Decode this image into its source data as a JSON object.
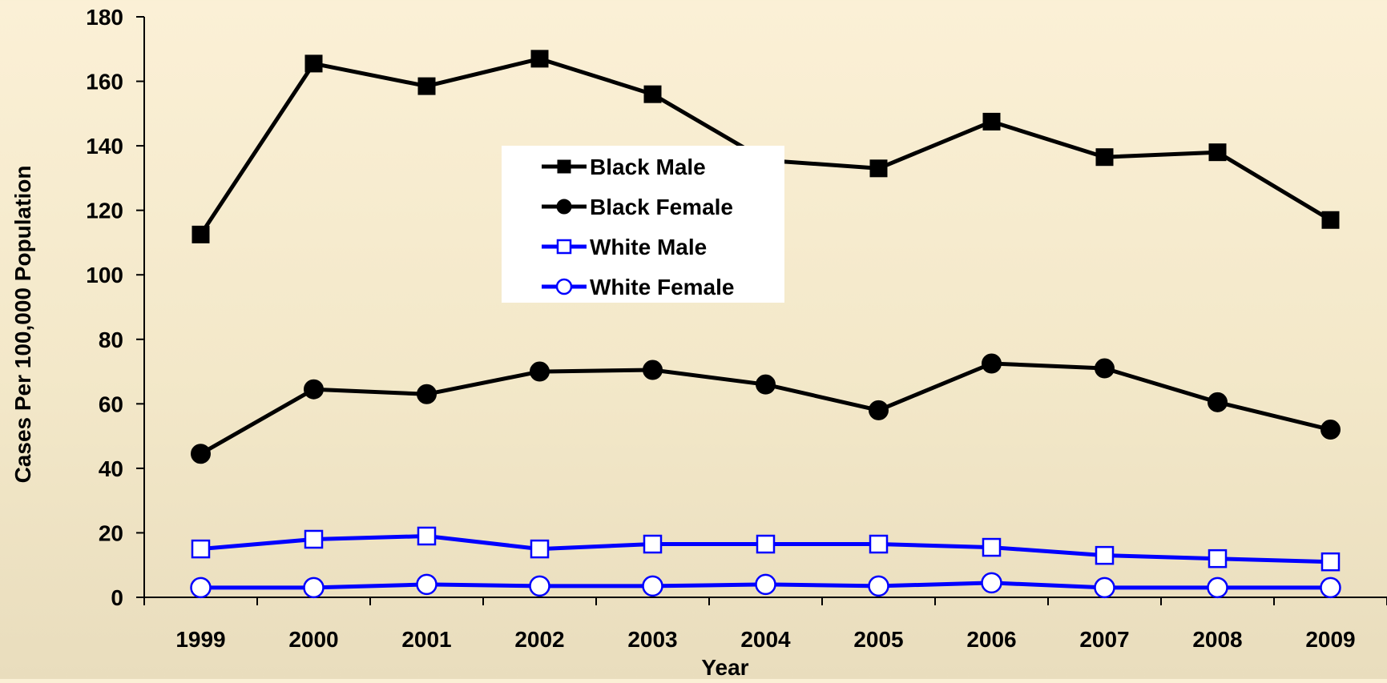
{
  "chart_data": {
    "type": "line",
    "title": "",
    "xlabel": "Year",
    "ylabel": "Cases Per 100,000 Population",
    "x": [
      "1999",
      "2000",
      "2001",
      "2002",
      "2003",
      "2004",
      "2005",
      "2006",
      "2007",
      "2008",
      "2009"
    ],
    "ylim": [
      0,
      180
    ],
    "yticks": [
      0,
      20,
      40,
      60,
      80,
      100,
      120,
      140,
      160,
      180
    ],
    "grid": false,
    "legend_position": "center",
    "series": [
      {
        "name": "Black Male",
        "color": "#000000",
        "marker": "filled-square",
        "values": [
          112.5,
          165.5,
          158.5,
          167,
          156,
          135.5,
          133,
          147.5,
          136.5,
          138,
          117
        ]
      },
      {
        "name": "Black Female",
        "color": "#000000",
        "marker": "filled-circle",
        "values": [
          44.5,
          64.5,
          63,
          70,
          70.5,
          66,
          58,
          72.5,
          71,
          60.5,
          52
        ]
      },
      {
        "name": "White Male",
        "color": "#0000ff",
        "marker": "hollow-square",
        "values": [
          15,
          18,
          19,
          15,
          16.5,
          16.5,
          16.5,
          15.5,
          13,
          12,
          11
        ]
      },
      {
        "name": "White Female",
        "color": "#0000ff",
        "marker": "hollow-circle",
        "values": [
          3,
          3,
          4,
          3.5,
          3.5,
          4,
          3.5,
          4.5,
          3,
          3,
          3
        ]
      }
    ]
  }
}
